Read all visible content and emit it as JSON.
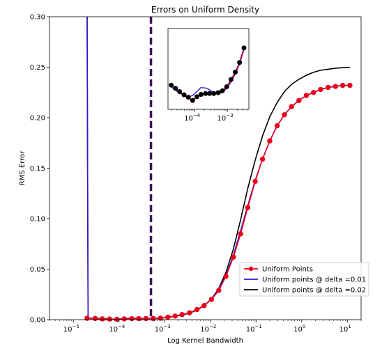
{
  "chart_data": [
    {
      "type": "line",
      "title": "Errors on Uniform Density",
      "xlabel": "Log Kernel Bandwidth",
      "ylabel": "RMS Error",
      "xscale": "log",
      "xlim": [
        3e-06,
        20
      ],
      "ylim": [
        0,
        0.3
      ],
      "grid": false,
      "legend_position": "lower-right",
      "x_tick_labels": [
        {
          "label": "10",
          "exp": "−5",
          "value": 1e-05
        },
        {
          "label": "10",
          "exp": "−4",
          "value": 0.0001
        },
        {
          "label": "10",
          "exp": "−3",
          "value": 0.001
        },
        {
          "label": "10",
          "exp": "−2",
          "value": 0.01
        },
        {
          "label": "10",
          "exp": "−1",
          "value": 0.1
        },
        {
          "label": "10",
          "exp": "0",
          "value": 1
        },
        {
          "label": "10",
          "exp": "1",
          "value": 10
        }
      ],
      "y_ticks": [
        "0.00",
        "0.05",
        "0.10",
        "0.15",
        "0.20",
        "0.25",
        "0.30"
      ],
      "vline": {
        "x": 0.0005,
        "color": "#3f0f5a",
        "style": "dashed"
      },
      "series": [
        {
          "name": "Uniform Points",
          "color": "#e8001c",
          "marker": "o",
          "x": [
            2e-05,
            3e-05,
            4.3e-05,
            6.2e-05,
            9e-05,
            0.00013,
            0.00019,
            0.00027,
            0.00039,
            0.00056,
            0.00081,
            0.00117,
            0.0017,
            0.0024,
            0.0035,
            0.0051,
            0.0073,
            0.0106,
            0.0153,
            0.022,
            0.032,
            0.046,
            0.066,
            0.096,
            0.139,
            0.2,
            0.29,
            0.42,
            0.6,
            0.87,
            1.26,
            1.82,
            2.6,
            3.8,
            5.5,
            7.9,
            11.4
          ],
          "y": [
            0.0015,
            0.0012,
            0.0008,
            0.0006,
            0.0004,
            0.0008,
            0.001,
            0.0011,
            0.0011,
            0.0012,
            0.0016,
            0.0025,
            0.0036,
            0.005,
            0.0068,
            0.01,
            0.014,
            0.02,
            0.029,
            0.043,
            0.062,
            0.085,
            0.111,
            0.137,
            0.159,
            0.177,
            0.192,
            0.203,
            0.211,
            0.217,
            0.222,
            0.225,
            0.228,
            0.23,
            0.231,
            0.232,
            0.232
          ]
        },
        {
          "name": "Uniform points @ delta =0.01",
          "color": "#3b11d9",
          "x": [
            2e-05,
            2.05e-05,
            2.1e-05,
            3e-05,
            4.3e-05,
            6.2e-05,
            9e-05,
            0.00013,
            0.00019,
            0.00027,
            0.00039,
            0.00056,
            0.00081,
            0.00117,
            0.0017,
            0.0024,
            0.0035,
            0.0051,
            0.0073,
            0.0106,
            0.0153,
            0.022,
            0.032,
            0.046,
            0.066,
            0.096,
            0.139,
            0.2,
            0.29,
            0.42,
            0.6,
            0.87,
            1.26,
            1.82,
            2.6,
            3.8,
            5.5,
            7.9,
            11.4
          ],
          "y": [
            0.3,
            0.15,
            0.0015,
            0.0012,
            0.0008,
            0.0006,
            0.0005,
            0.0012,
            0.0016,
            0.0012,
            0.0011,
            0.0012,
            0.0015,
            0.0024,
            0.0035,
            0.0049,
            0.0067,
            0.0098,
            0.014,
            0.0205,
            0.03,
            0.044,
            0.064,
            0.088,
            0.113,
            0.138,
            0.159,
            0.177,
            0.192,
            0.203,
            0.211,
            0.217,
            0.222,
            0.225,
            0.228,
            0.23,
            0.231,
            0.232,
            0.232
          ]
        },
        {
          "name": "Uniform points @ delta =0.02",
          "color": "#000000",
          "x": [
            2e-05,
            2.05e-05,
            2.1e-05,
            3e-05,
            4.3e-05,
            6.2e-05,
            9e-05,
            0.00013,
            0.00019,
            0.00027,
            0.00039,
            0.00056,
            0.00081,
            0.00117,
            0.0017,
            0.0024,
            0.0035,
            0.0051,
            0.0073,
            0.0106,
            0.0153,
            0.022,
            0.032,
            0.046,
            0.066,
            0.096,
            0.139,
            0.2,
            0.29,
            0.42,
            0.6,
            0.87,
            1.26,
            1.82,
            2.6,
            3.8,
            5.5,
            7.9,
            11.4
          ],
          "y": [
            0.3,
            0.15,
            0.0012,
            0.001,
            0.0007,
            0.0005,
            0.0004,
            0.001,
            0.0014,
            0.0011,
            0.001,
            0.0011,
            0.0014,
            0.0022,
            0.0033,
            0.0047,
            0.0065,
            0.0095,
            0.0138,
            0.0205,
            0.031,
            0.047,
            0.07,
            0.099,
            0.13,
            0.158,
            0.182,
            0.201,
            0.215,
            0.226,
            0.233,
            0.238,
            0.242,
            0.245,
            0.247,
            0.248,
            0.249,
            0.2495,
            0.2497
          ]
        }
      ]
    },
    {
      "type": "line",
      "title": "",
      "xscale": "log",
      "xlim": [
        1.6e-05,
        0.0045
      ],
      "ylim": [
        0.0002,
        0.0052
      ],
      "x_tick_labels": [
        {
          "label": "10",
          "exp": "−4",
          "value": 0.0001
        },
        {
          "label": "10",
          "exp": "−3",
          "value": 0.001
        }
      ],
      "series": [
        {
          "name": "Uniform Points",
          "color": "#e8001c",
          "marker": "o",
          "x": [
            2e-05,
            2.7e-05,
            3.6e-05,
            4.9e-05,
            6.6e-05,
            8.9e-05,
            0.00012,
            0.00016,
            0.00022,
            0.00029,
            0.00039,
            0.00053,
            0.00071,
            0.00096,
            0.0013,
            0.00175,
            0.00235,
            0.0032
          ],
          "y": [
            0.0017,
            0.0015,
            0.0013,
            0.0011,
            0.00095,
            0.00075,
            0.00098,
            0.00112,
            0.00118,
            0.00118,
            0.00118,
            0.00123,
            0.00135,
            0.0016,
            0.00205,
            0.0025,
            0.0031,
            0.004
          ]
        },
        {
          "name": "Uniform points @ delta =0.01",
          "color": "#3b11d9",
          "x": [
            2e-05,
            2.7e-05,
            3.6e-05,
            4.9e-05,
            6.6e-05,
            8.9e-05,
            0.00012,
            0.00016,
            0.00022,
            0.00029,
            0.00039,
            0.00053,
            0.00071,
            0.00096,
            0.0013,
            0.00175,
            0.00235,
            0.0032
          ],
          "y": [
            0.0016,
            0.00138,
            0.0012,
            0.00105,
            0.00098,
            0.00105,
            0.0013,
            0.00155,
            0.00152,
            0.00142,
            0.00122,
            0.00115,
            0.00125,
            0.0015,
            0.0019,
            0.0024,
            0.003,
            0.0039
          ]
        },
        {
          "name": "Uniform points @ delta =0.02",
          "color": "#000000",
          "x": [
            2e-05,
            2.7e-05,
            3.6e-05,
            4.9e-05,
            6.6e-05,
            8.9e-05,
            0.00012,
            0.00016,
            0.00022,
            0.00029,
            0.00039,
            0.00053,
            0.00071,
            0.00096,
            0.0013,
            0.00175,
            0.00235,
            0.0032
          ],
          "y": [
            0.0016,
            0.0014,
            0.00122,
            0.00106,
            0.00092,
            0.00078,
            0.00096,
            0.0011,
            0.00116,
            0.00116,
            0.00117,
            0.00121,
            0.00132,
            0.00158,
            0.00203,
            0.0025,
            0.0031,
            0.004
          ]
        }
      ]
    }
  ]
}
